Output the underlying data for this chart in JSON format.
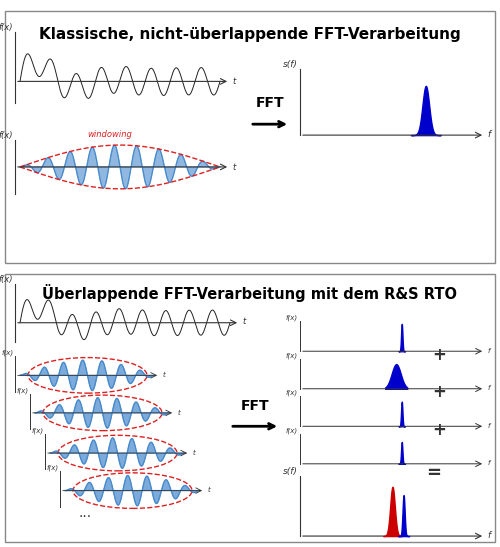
{
  "title_top": "Klassische, nicht-überlappende FFT-Verarbeitung",
  "title_bottom": "Überlappende FFT-Verarbeitung mit dem R&S RTO",
  "fft_label": "FFT",
  "windowing_label": "windowing",
  "sf_label": "s(f)",
  "f_label": "f",
  "fx_label": "f(x)",
  "plus_symbol": "+",
  "equals_symbol": "=",
  "bg_color": "#ffffff",
  "border_color": "#888888",
  "signal_color_black": "#222222",
  "signal_color_blue": "#4488cc",
  "windowed_envelope_color": "#dd2222",
  "fft_peak_blue": "#0000cc",
  "fft_peak_red": "#cc0000",
  "title_fontsize": 11,
  "label_fontsize": 7,
  "fft_fontsize": 12
}
